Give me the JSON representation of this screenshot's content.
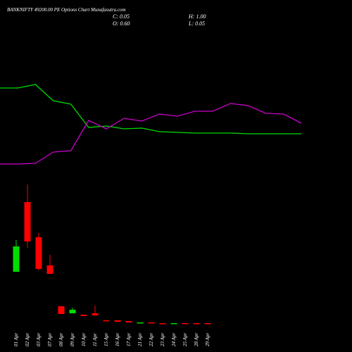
{
  "chart_data": {
    "type": "candlestick",
    "title": "BANKNIFTY 49200.00 PE Options Chart Munafasutra.com",
    "info": [
      "C: 0.05",
      "H: 1.00",
      "O: 0.60",
      "L: 0.05"
    ],
    "categories": [
      "01 Apr",
      "02 Apr",
      "03 Apr",
      "07 Apr",
      "08 Apr",
      "09 Apr",
      "10 Apr",
      "11 Apr",
      "15 Apr",
      "16 Apr",
      "17 Apr",
      "21 Apr",
      "22 Apr",
      "23 Apr",
      "24 Apr",
      "25 Apr",
      "28 Apr",
      "29 Apr"
    ],
    "open": [
      39.5,
      89,
      64,
      44,
      15,
      10,
      9,
      10,
      5,
      5,
      4.5,
      3,
      3.5,
      3,
      2.5,
      3,
      3,
      3
    ],
    "high": [
      62,
      101.5,
      67,
      51.5,
      15,
      14,
      9,
      15.5,
      5,
      5,
      4.5,
      3.5,
      3.5,
      3,
      3,
      3,
      3,
      3
    ],
    "low": [
      39.5,
      56.5,
      40.5,
      38,
      9.5,
      10,
      8,
      8.5,
      4.5,
      4,
      3.5,
      3,
      3,
      2.5,
      2.5,
      2.5,
      2.5,
      2.5
    ],
    "close": [
      57.5,
      61,
      41.5,
      38,
      9.5,
      12.5,
      8,
      8.5,
      4.5,
      4,
      3.5,
      3.5,
      3,
      2.5,
      3,
      2.5,
      2.5,
      2.5
    ],
    "up_color": "#00dd00",
    "down_color": "#ff0000",
    "lines": [
      {
        "color": "#00dd00",
        "values": [
          170,
          170,
          172.5,
          161,
          158.5,
          142,
          143,
          141,
          141.5,
          139,
          138.5,
          138,
          138,
          138,
          137.5,
          137.5,
          137.5,
          137.5
        ]
      },
      {
        "color": "#cc00cc",
        "values": [
          116,
          116,
          116.5,
          124.5,
          125.5,
          147,
          141,
          148.5,
          146.5,
          151.5,
          150,
          153.5,
          153.5,
          159,
          157.5,
          152,
          151.5,
          145
        ]
      }
    ],
    "ylim": [
      0,
      232.5
    ]
  }
}
